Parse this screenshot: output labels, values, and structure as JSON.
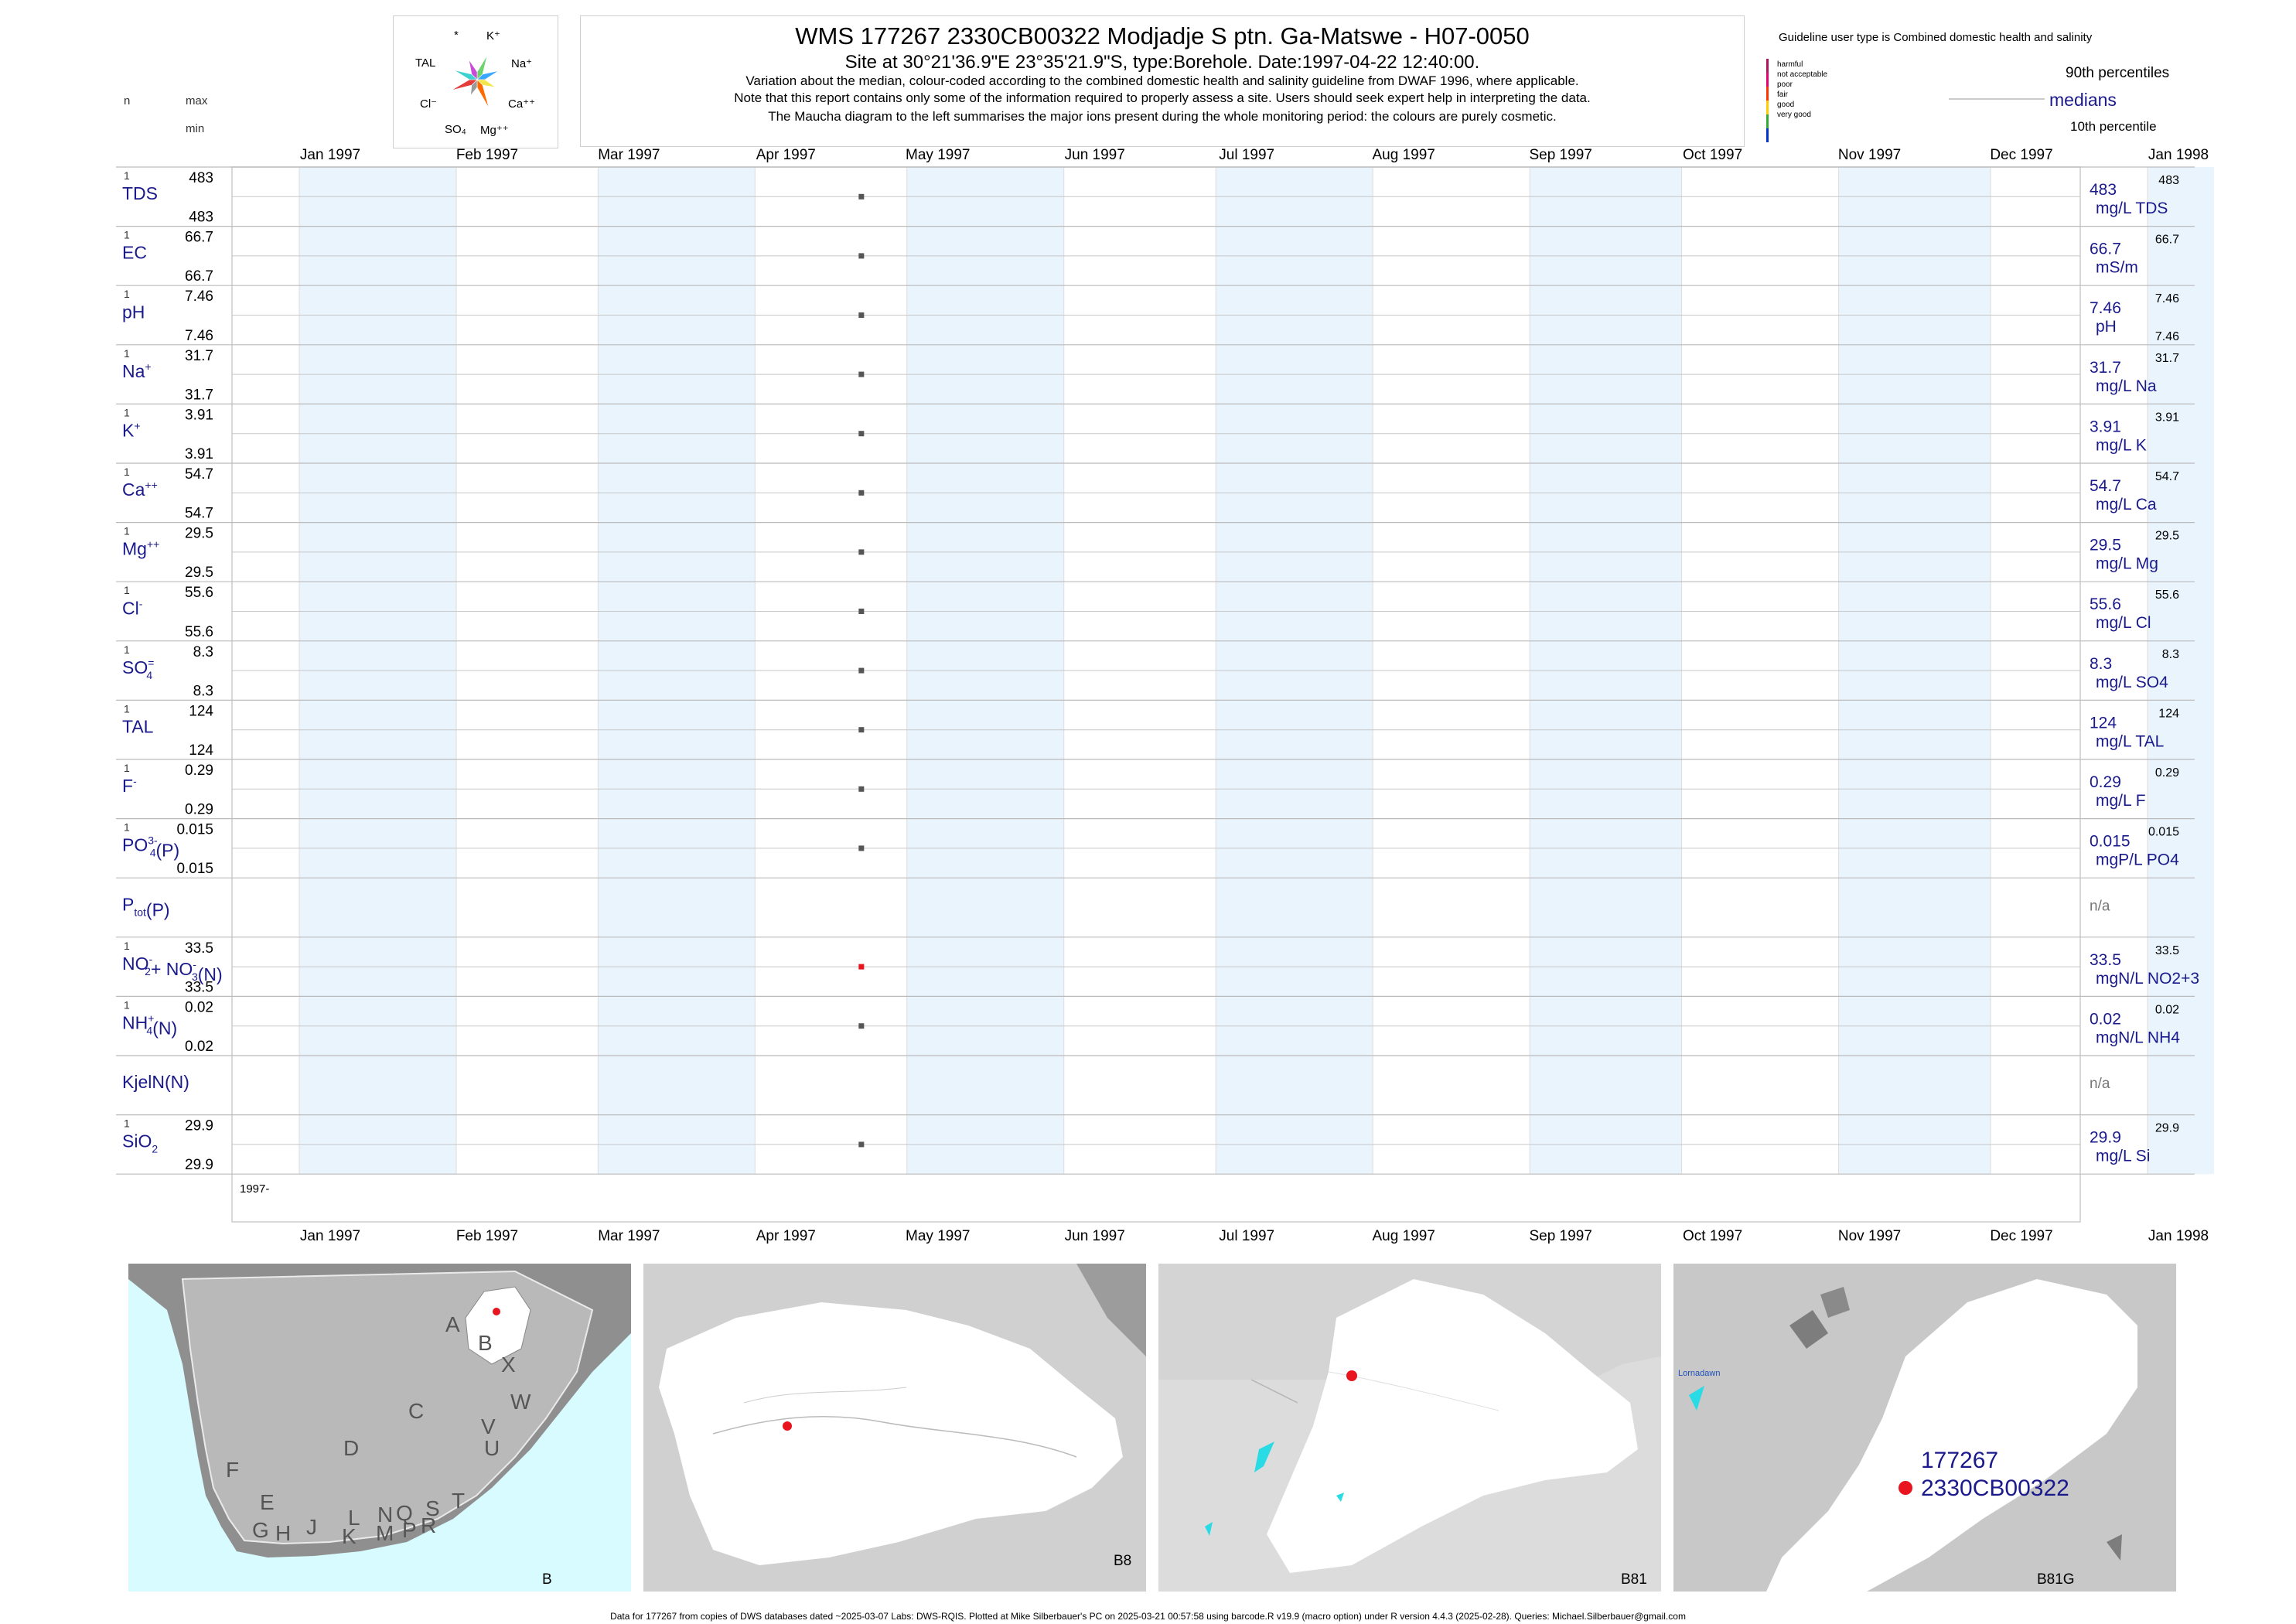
{
  "header": {
    "title": "WMS 177267 2330CB00322 Modjadje S ptn. Ga-Matswe - H07-0050",
    "site_line": "Site at 30°21'36.9\"E 23°35'21.9\"S, type:Borehole. Date:1997-04-22 12:40:00.",
    "note1": "Variation about the median,  colour-coded according to the combined domestic health and salinity guideline from DWAF 1996, where applicable.",
    "note2": "Note that this report contains only some of the information required to properly assess a site. Users should seek expert help in interpreting the data.",
    "note3": "The Maucha diagram to the left summarises the major ions present during the whole monitoring period: the colours are purely cosmetic."
  },
  "maucha": {
    "labels": {
      "star": "*",
      "k": "K⁺",
      "tal": "TAL",
      "na": "Na⁺",
      "cl": "Cl⁻",
      "ca": "Ca⁺⁺",
      "so4": "SO₄",
      "mg": "Mg⁺⁺"
    },
    "colors": [
      "#6dd36d",
      "#3aa6ff",
      "#f3e64b",
      "#ff6a00",
      "#9a9a9a",
      "#e53b3b",
      "#3cd2d2",
      "#c94bd6"
    ]
  },
  "left_header": {
    "n": "n",
    "max": "max",
    "min": "min"
  },
  "guideline": {
    "title": "Guideline user type is Combined domestic health and salinity",
    "classes": [
      {
        "label": "harmful",
        "color": "#b0125c"
      },
      {
        "label": "not acceptable",
        "color": "#e6006f"
      },
      {
        "label": "poor",
        "color": "#ff3300"
      },
      {
        "label": "fair",
        "color": "#ffcc00"
      },
      {
        "label": "good",
        "color": "#33aa33"
      },
      {
        "label": "very good",
        "color": "#0033cc"
      }
    ],
    "p90": "90th percentiles",
    "medians": "medians",
    "p10": "10th percentile"
  },
  "chart_data": {
    "type": "scatter",
    "x_axis": {
      "type": "date",
      "range": [
        "1997-01-01",
        "1998-01-01"
      ],
      "ticks": [
        "Jan 1997",
        "Feb 1997",
        "Mar 1997",
        "Apr 1997",
        "May 1997",
        "Jun 1997",
        "Jul 1997",
        "Aug 1997",
        "Sep 1997",
        "Oct 1997",
        "Nov 1997",
        "Dec 1997",
        "Jan 1998"
      ],
      "year_label": "1997-"
    },
    "sample_date": "1997-04-22",
    "grid": true,
    "panels": [
      {
        "param": "TDS",
        "sup": "",
        "sub": "",
        "suffix": "",
        "n": "1",
        "max": "483",
        "min": "483",
        "value": 483,
        "median": "483",
        "p90": "483",
        "p10": "",
        "unit": "mg/L TDS",
        "color": "#555555"
      },
      {
        "param": "EC",
        "sup": "",
        "sub": "",
        "suffix": "",
        "n": "1",
        "max": "66.7",
        "min": "66.7",
        "value": 66.7,
        "median": "66.7",
        "p90": "66.7",
        "p10": "",
        "unit": "mS/m",
        "color": "#555555"
      },
      {
        "param": "pH",
        "sup": "",
        "sub": "",
        "suffix": "",
        "n": "1",
        "max": "7.46",
        "min": "7.46",
        "value": 7.46,
        "median": "7.46",
        "p90": "7.46",
        "p10": "7.46",
        "unit": "pH",
        "color": "#555555"
      },
      {
        "param": "Na",
        "sup": "+",
        "sub": "",
        "suffix": "",
        "n": "1",
        "max": "31.7",
        "min": "31.7",
        "value": 31.7,
        "median": "31.7",
        "p90": "31.7",
        "p10": "",
        "unit": "mg/L Na",
        "color": "#555555"
      },
      {
        "param": "K",
        "sup": "+",
        "sub": "",
        "suffix": "",
        "n": "1",
        "max": "3.91",
        "min": "3.91",
        "value": 3.91,
        "median": "3.91",
        "p90": "3.91",
        "p10": "",
        "unit": "mg/L K",
        "color": "#555555"
      },
      {
        "param": "Ca",
        "sup": "++",
        "sub": "",
        "suffix": "",
        "n": "1",
        "max": "54.7",
        "min": "54.7",
        "value": 54.7,
        "median": "54.7",
        "p90": "54.7",
        "p10": "",
        "unit": "mg/L Ca",
        "color": "#555555"
      },
      {
        "param": "Mg",
        "sup": "++",
        "sub": "",
        "suffix": "",
        "n": "1",
        "max": "29.5",
        "min": "29.5",
        "value": 29.5,
        "median": "29.5",
        "p90": "29.5",
        "p10": "",
        "unit": "mg/L Mg",
        "color": "#555555"
      },
      {
        "param": "Cl",
        "sup": "-",
        "sub": "",
        "suffix": "",
        "n": "1",
        "max": "55.6",
        "min": "55.6",
        "value": 55.6,
        "median": "55.6",
        "p90": "55.6",
        "p10": "",
        "unit": "mg/L Cl",
        "color": "#555555"
      },
      {
        "param": "SO",
        "sup": "=",
        "sub": "4",
        "suffix": "",
        "n": "1",
        "max": "8.3",
        "min": "8.3",
        "value": 8.3,
        "median": "8.3",
        "p90": "8.3",
        "p10": "",
        "unit": "mg/L SO4",
        "color": "#555555"
      },
      {
        "param": "TAL",
        "sup": "",
        "sub": "",
        "suffix": "",
        "n": "1",
        "max": "124",
        "min": "124",
        "value": 124,
        "median": "124",
        "p90": "124",
        "p10": "",
        "unit": "mg/L TAL",
        "color": "#555555"
      },
      {
        "param": "F",
        "sup": "-",
        "sub": "",
        "suffix": "",
        "n": "1",
        "max": "0.29",
        "min": "0.29",
        "value": 0.29,
        "median": "0.29",
        "p90": "0.29",
        "p10": "",
        "unit": "mg/L F",
        "color": "#555555"
      },
      {
        "param": "PO",
        "sup": "3-",
        "sub": "4",
        "suffix": "(P)",
        "n": "1",
        "max": "0.015",
        "min": "0.015",
        "value": 0.015,
        "median": "0.015",
        "p90": "0.015",
        "p10": "",
        "unit": "mgP/L PO4",
        "color": "#555555"
      },
      {
        "param": "P",
        "sup": "",
        "sub": "tot",
        "suffix": "(P)",
        "n": "",
        "max": "",
        "min": "",
        "value": null,
        "median": "n/a",
        "p90": "",
        "p10": "",
        "unit": "",
        "color": "#555555"
      },
      {
        "param": "NO",
        "sup": "-",
        "sub": "2",
        "suffix": "+ NO",
        "suffix_sup": "-",
        "suffix_sub": "3",
        "suffix2": "(N)",
        "n": "1",
        "max": "33.5",
        "min": "33.5",
        "value": 33.5,
        "median": "33.5",
        "p90": "33.5",
        "p10": "",
        "unit": "mgN/L NO2+3",
        "color": "#e8141e"
      },
      {
        "param": "NH",
        "sup": "+",
        "sub": "4",
        "suffix": "(N)",
        "n": "1",
        "max": "0.02",
        "min": "0.02",
        "value": 0.02,
        "median": "0.02",
        "p90": "0.02",
        "p10": "",
        "unit": "mgN/L NH4",
        "color": "#555555"
      },
      {
        "param": "KjelN(N)",
        "sup": "",
        "sub": "",
        "suffix": "",
        "n": "",
        "max": "",
        "min": "",
        "value": null,
        "median": "n/a",
        "p90": "",
        "p10": "",
        "unit": "",
        "color": "#555555"
      },
      {
        "param": "SiO",
        "sup": "",
        "sub": "2",
        "suffix": "",
        "n": "1",
        "max": "29.9",
        "min": "29.9",
        "value": 29.9,
        "median": "29.9",
        "p90": "29.9",
        "p10": "",
        "unit": "mg/L Si",
        "color": "#555555"
      }
    ]
  },
  "maps": {
    "panel_b": {
      "tag": "B",
      "regions": [
        "A",
        "B",
        "X",
        "W",
        "C",
        "V",
        "D",
        "U",
        "F",
        "T",
        "E",
        "S",
        "G",
        "H",
        "J",
        "K",
        "L",
        "M",
        "N",
        "P",
        "Q",
        "R"
      ]
    },
    "panel_b8": {
      "tag": "B8"
    },
    "panel_b81": {
      "tag": "B81"
    },
    "panel_b81g": {
      "tag": "B81G",
      "town": "Lornadawn",
      "site_id": "177267",
      "site_code": "2330CB00322"
    }
  },
  "footer": "Data for 177267 from copies of DWS databases dated ~2025-03-07 Labs: DWS-RQIS. Plotted at Mike Silberbauer's PC on 2025-03-21 00:57:58 using barcode.R v19.9 (macro option) under R version 4.4.3 (2025-02-28). Queries: Michael.Silberbauer@gmail.com"
}
